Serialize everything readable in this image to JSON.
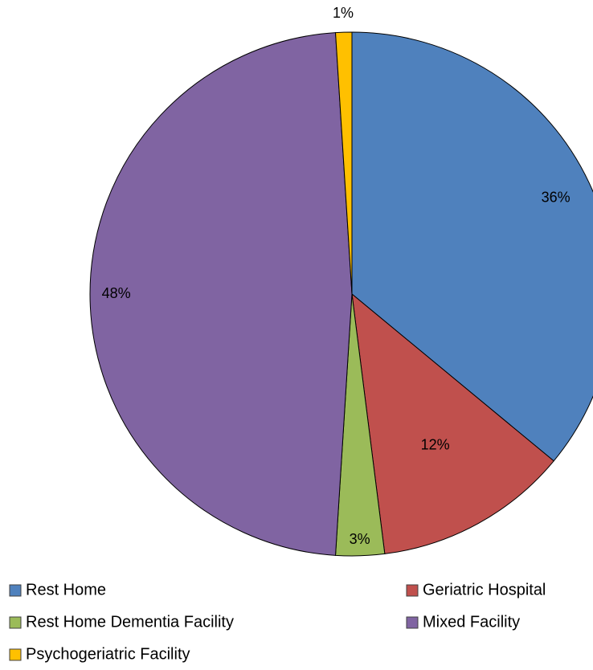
{
  "chart_data": {
    "type": "pie",
    "title": "",
    "categories": [
      "Rest Home",
      "Geriatric Hospital",
      "Rest Home Dementia Facility",
      "Mixed Facility",
      "Psychogeriatric Facility"
    ],
    "values": [
      36,
      12,
      3,
      48,
      1
    ],
    "data_labels": [
      "36%",
      "12%",
      "3%",
      "48%",
      "1%"
    ],
    "colors": [
      "#4F81BD",
      "#C0504D",
      "#9BBB59",
      "#8064A2",
      "#FFC000"
    ],
    "start_angle_deg": 0,
    "direction": "clockwise",
    "legend_position": "bottom"
  }
}
